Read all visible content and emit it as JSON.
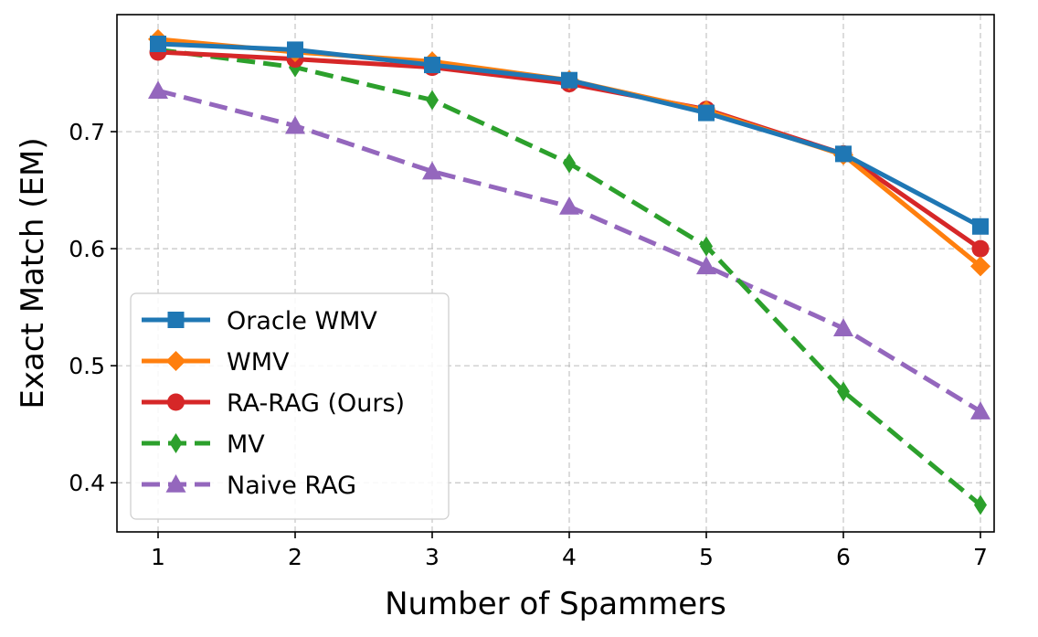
{
  "chart_data": {
    "type": "line",
    "title": "",
    "xlabel": "Number of Spammers",
    "ylabel": "Exact Match (EM)",
    "x": [
      1,
      2,
      3,
      4,
      5,
      6,
      7
    ],
    "xlim": [
      0.7,
      7.1
    ],
    "ylim": [
      0.358,
      0.8
    ],
    "xticks": [
      1,
      2,
      3,
      4,
      5,
      6,
      7
    ],
    "yticks": [
      0.4,
      0.5,
      0.6,
      0.7
    ],
    "ytick_labels": [
      "0.4",
      "0.5",
      "0.6",
      "0.7"
    ],
    "grid": true,
    "legend_position": "lower-left",
    "series": [
      {
        "name": "Oracle WMV",
        "values": [
          0.775,
          0.77,
          0.757,
          0.744,
          0.716,
          0.681,
          0.619
        ],
        "color": "#1f77b4",
        "marker": "square",
        "dashed": false
      },
      {
        "name": "WMV",
        "values": [
          0.779,
          0.768,
          0.76,
          0.744,
          0.718,
          0.68,
          0.585
        ],
        "color": "#ff7f0e",
        "marker": "diamond",
        "dashed": false
      },
      {
        "name": "RA-RAG (Ours)",
        "values": [
          0.768,
          0.762,
          0.755,
          0.741,
          0.719,
          0.681,
          0.6
        ],
        "color": "#d62728",
        "marker": "circle",
        "dashed": false
      },
      {
        "name": "MV",
        "values": [
          0.77,
          0.755,
          0.727,
          0.673,
          0.602,
          0.478,
          0.381
        ],
        "color": "#2ca02c",
        "marker": "thin-diamond",
        "dashed": true
      },
      {
        "name": "Naive RAG",
        "values": [
          0.735,
          0.705,
          0.666,
          0.636,
          0.585,
          0.532,
          0.461
        ],
        "color": "#9467bd",
        "marker": "triangle",
        "dashed": true
      }
    ]
  }
}
